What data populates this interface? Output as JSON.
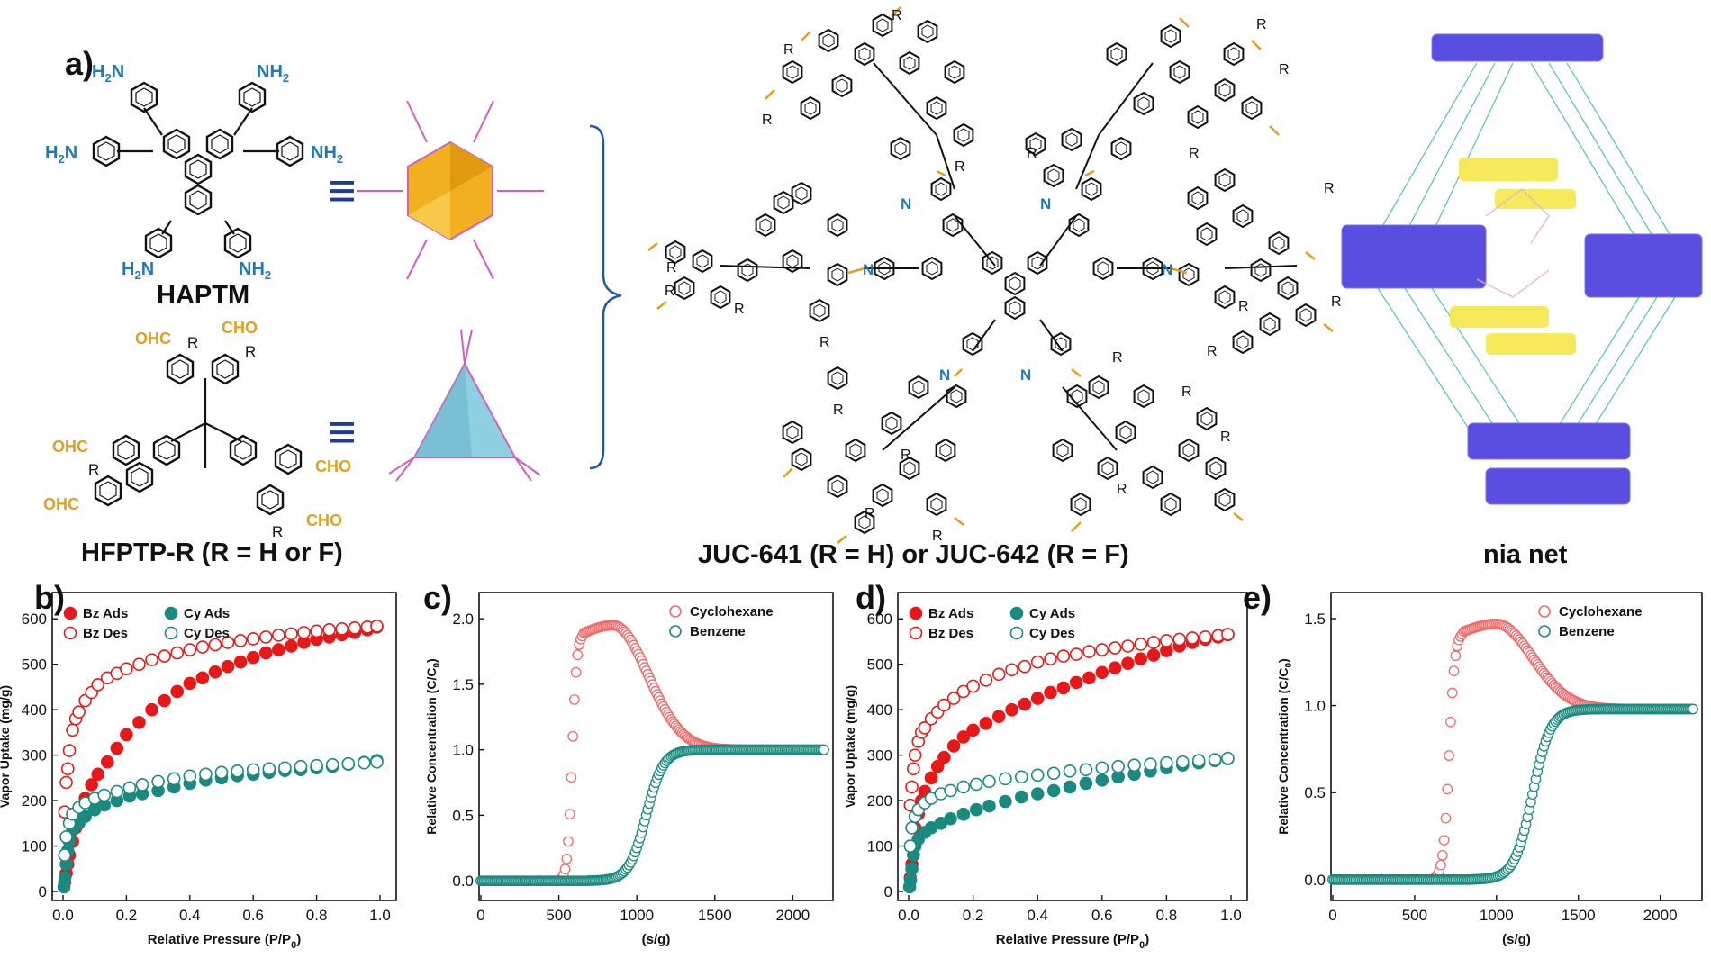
{
  "panels": {
    "a": "a)",
    "b": "b)",
    "c": "c)",
    "d": "d)",
    "e": "e)"
  },
  "scheme": {
    "haptm_label": "HAPTM",
    "hfptp_label": "HFPTP-R (R = H or F)",
    "juc_label": "JUC-641 (R = H) or JUC-642 (R = F)",
    "nia_label": "nia net",
    "nh2": "NH",
    "nh2_sub": "2",
    "h2n": "H",
    "h2n_sub": "2",
    "h2n_n": "N",
    "cho": "CHO",
    "ohc": "OHC",
    "r": "R",
    "n": "N",
    "equiv": "≡",
    "colors": {
      "amine": "#1f7ab8",
      "aldehyde": "#e0a020",
      "hexagon": "#f0b020",
      "triangle": "#8fd0e0",
      "net_blue": "#5a4ee0",
      "net_yellow": "#f5e84a",
      "net_line": "#3ab7a0"
    }
  },
  "chart_data": [
    {
      "id": "b",
      "type": "scatter",
      "xlabel": "Relative Pressure (P/P",
      "xlabel_sub": "0",
      "xlabel_end": ")",
      "ylabel": "Vapor Uptake (mg/g)",
      "xlim": [
        0,
        1.0
      ],
      "ylim": [
        0,
        650
      ],
      "xticks": [
        "0.0",
        "0.2",
        "0.4",
        "0.6",
        "0.8",
        "1.0"
      ],
      "yticks": [
        "0",
        "100",
        "200",
        "300",
        "400",
        "500",
        "600"
      ],
      "legend": [
        "Bz Ads",
        "Bz Des",
        "Cy Ads",
        "Cy Des"
      ],
      "colors": {
        "bz": "#e81818",
        "cy": "#1a8a80"
      },
      "series": [
        {
          "name": "Bz Ads",
          "filled": true,
          "color": "#e81818",
          "x": [
            0.005,
            0.01,
            0.015,
            0.02,
            0.03,
            0.04,
            0.05,
            0.07,
            0.09,
            0.11,
            0.14,
            0.17,
            0.2,
            0.24,
            0.28,
            0.32,
            0.36,
            0.4,
            0.44,
            0.48,
            0.52,
            0.56,
            0.6,
            0.64,
            0.68,
            0.72,
            0.76,
            0.8,
            0.84,
            0.88,
            0.92,
            0.96,
            0.99
          ],
          "y": [
            20,
            40,
            60,
            80,
            110,
            140,
            165,
            205,
            235,
            258,
            285,
            315,
            345,
            372,
            400,
            420,
            440,
            458,
            470,
            483,
            495,
            505,
            515,
            525,
            532,
            540,
            548,
            555,
            560,
            565,
            570,
            576,
            582
          ]
        },
        {
          "name": "Bz Des",
          "filled": false,
          "color": "#e81818",
          "x": [
            0.005,
            0.01,
            0.015,
            0.02,
            0.03,
            0.04,
            0.05,
            0.07,
            0.09,
            0.11,
            0.14,
            0.17,
            0.2,
            0.24,
            0.28,
            0.32,
            0.36,
            0.4,
            0.44,
            0.48,
            0.52,
            0.56,
            0.6,
            0.64,
            0.68,
            0.72,
            0.76,
            0.8,
            0.84,
            0.88,
            0.92,
            0.96,
            0.99
          ],
          "y": [
            175,
            240,
            270,
            310,
            355,
            380,
            395,
            420,
            438,
            455,
            470,
            480,
            490,
            500,
            510,
            518,
            525,
            532,
            538,
            543,
            548,
            552,
            556,
            560,
            564,
            567,
            570,
            573,
            576,
            578,
            580,
            582,
            584
          ]
        },
        {
          "name": "Cy Ads",
          "filled": true,
          "color": "#1a8a80",
          "x": [
            0.003,
            0.006,
            0.01,
            0.015,
            0.02,
            0.03,
            0.05,
            0.07,
            0.1,
            0.13,
            0.17,
            0.21,
            0.25,
            0.3,
            0.35,
            0.4,
            0.45,
            0.5,
            0.55,
            0.6,
            0.65,
            0.7,
            0.75,
            0.8,
            0.85,
            0.9,
            0.95,
            0.99
          ],
          "y": [
            10,
            30,
            60,
            90,
            110,
            135,
            150,
            165,
            180,
            190,
            200,
            210,
            215,
            222,
            230,
            238,
            245,
            250,
            255,
            258,
            262,
            266,
            268,
            272,
            275,
            280,
            284,
            288
          ]
        },
        {
          "name": "Cy Des",
          "filled": false,
          "color": "#1a8a80",
          "x": [
            0.005,
            0.01,
            0.02,
            0.03,
            0.05,
            0.07,
            0.1,
            0.13,
            0.17,
            0.21,
            0.25,
            0.3,
            0.35,
            0.4,
            0.45,
            0.5,
            0.55,
            0.6,
            0.65,
            0.7,
            0.75,
            0.8,
            0.85,
            0.9,
            0.95,
            0.99
          ],
          "y": [
            80,
            120,
            150,
            170,
            185,
            195,
            205,
            212,
            220,
            228,
            235,
            242,
            248,
            254,
            258,
            262,
            265,
            268,
            270,
            272,
            275,
            277,
            279,
            281,
            283,
            285
          ]
        }
      ]
    },
    {
      "id": "c",
      "type": "scatter",
      "xlabel": "(s/g)",
      "ylabel": "Relative Concentration (C/C",
      "ylabel_sub": "0",
      "ylabel_end": ")",
      "xlim": [
        0,
        2200
      ],
      "ylim": [
        -0.15,
        2.2
      ],
      "xticks": [
        "0",
        "500",
        "1000",
        "1500",
        "2000"
      ],
      "yticks": [
        "0.0",
        "0.5",
        "1.0",
        "1.5",
        "2.0"
      ],
      "legend": [
        "Cyclohexane",
        "Benzene"
      ],
      "curves": [
        {
          "name": "Cyclohexane",
          "color": "#f06a6a",
          "kind": "cy",
          "onset": 510,
          "rise_end": 660,
          "peak": 1.95,
          "peak_x": 850,
          "settle": 1.0
        },
        {
          "name": "Benzene",
          "color": "#1a8a80",
          "kind": "bz",
          "mid": 1060,
          "width": 55,
          "plateau": 1.0
        }
      ]
    },
    {
      "id": "d",
      "type": "scatter",
      "xlabel": "Relative Pressure (P/P",
      "xlabel_sub": "0",
      "xlabel_end": ")",
      "ylabel": "Vapor Uptake (mg/g)",
      "xlim": [
        0,
        1.0
      ],
      "ylim": [
        0,
        650
      ],
      "xticks": [
        "0.0",
        "0.2",
        "0.4",
        "0.6",
        "0.8",
        "1.0"
      ],
      "yticks": [
        "0",
        "100",
        "200",
        "300",
        "400",
        "500",
        "600"
      ],
      "legend": [
        "Bz Ads",
        "Bz Des",
        "Cy Ads",
        "Cy Des"
      ],
      "series": [
        {
          "name": "Bz Ads",
          "filled": true,
          "color": "#e81818",
          "x": [
            0.005,
            0.01,
            0.015,
            0.02,
            0.03,
            0.04,
            0.05,
            0.07,
            0.09,
            0.11,
            0.14,
            0.17,
            0.2,
            0.24,
            0.28,
            0.32,
            0.36,
            0.4,
            0.44,
            0.48,
            0.52,
            0.56,
            0.6,
            0.64,
            0.68,
            0.72,
            0.76,
            0.8,
            0.84,
            0.88,
            0.92,
            0.96,
            0.99
          ],
          "y": [
            30,
            60,
            100,
            140,
            170,
            200,
            220,
            250,
            275,
            295,
            320,
            340,
            355,
            370,
            385,
            400,
            412,
            425,
            438,
            448,
            460,
            470,
            482,
            492,
            502,
            512,
            520,
            530,
            540,
            548,
            555,
            560,
            565
          ]
        },
        {
          "name": "Bz Des",
          "filled": false,
          "color": "#e81818",
          "x": [
            0.005,
            0.01,
            0.015,
            0.02,
            0.03,
            0.04,
            0.05,
            0.07,
            0.09,
            0.11,
            0.14,
            0.17,
            0.2,
            0.24,
            0.28,
            0.32,
            0.36,
            0.4,
            0.44,
            0.48,
            0.52,
            0.56,
            0.6,
            0.64,
            0.68,
            0.72,
            0.76,
            0.8,
            0.84,
            0.88,
            0.92,
            0.96,
            0.99
          ],
          "y": [
            190,
            230,
            270,
            300,
            330,
            350,
            360,
            380,
            395,
            410,
            425,
            440,
            452,
            465,
            478,
            488,
            495,
            505,
            512,
            518,
            522,
            528,
            532,
            536,
            540,
            544,
            548,
            552,
            555,
            558,
            560,
            563,
            566
          ]
        },
        {
          "name": "Cy Ads",
          "filled": true,
          "color": "#1a8a80",
          "x": [
            0.003,
            0.006,
            0.01,
            0.015,
            0.02,
            0.03,
            0.05,
            0.07,
            0.1,
            0.13,
            0.17,
            0.21,
            0.25,
            0.3,
            0.35,
            0.4,
            0.45,
            0.5,
            0.55,
            0.6,
            0.65,
            0.7,
            0.75,
            0.8,
            0.85,
            0.9,
            0.95,
            0.99
          ],
          "y": [
            10,
            25,
            50,
            80,
            100,
            115,
            130,
            140,
            150,
            160,
            170,
            180,
            188,
            198,
            208,
            215,
            222,
            230,
            238,
            245,
            252,
            258,
            265,
            272,
            278,
            283,
            288,
            292
          ]
        },
        {
          "name": "Cy Des",
          "filled": false,
          "color": "#1a8a80",
          "x": [
            0.005,
            0.01,
            0.02,
            0.03,
            0.05,
            0.07,
            0.1,
            0.13,
            0.17,
            0.21,
            0.25,
            0.3,
            0.35,
            0.4,
            0.45,
            0.5,
            0.55,
            0.6,
            0.65,
            0.7,
            0.75,
            0.8,
            0.85,
            0.9,
            0.95,
            0.99
          ],
          "y": [
            100,
            140,
            165,
            180,
            195,
            205,
            215,
            222,
            230,
            236,
            242,
            248,
            252,
            256,
            260,
            265,
            268,
            272,
            275,
            278,
            280,
            283,
            285,
            288,
            290,
            293
          ]
        }
      ]
    },
    {
      "id": "e",
      "type": "scatter",
      "xlabel": "(s/g)",
      "ylabel": "Relative Concentration (C/C",
      "ylabel_sub": "0",
      "ylabel_end": ")",
      "xlim": [
        0,
        2200
      ],
      "ylim": [
        -0.12,
        1.65
      ],
      "xticks": [
        "0",
        "500",
        "1000",
        "1500",
        "2000"
      ],
      "yticks": [
        "0.0",
        "0.5",
        "1.0",
        "1.5"
      ],
      "legend": [
        "Cyclohexane",
        "Benzene"
      ],
      "curves": [
        {
          "name": "Cyclohexane",
          "color": "#f06a6a",
          "kind": "cy",
          "onset": 620,
          "rise_end": 800,
          "peak": 1.47,
          "peak_x": 1000,
          "settle": 0.98
        },
        {
          "name": "Benzene",
          "color": "#1a8a80",
          "kind": "bz",
          "mid": 1220,
          "width": 55,
          "plateau": 0.98
        }
      ]
    }
  ]
}
